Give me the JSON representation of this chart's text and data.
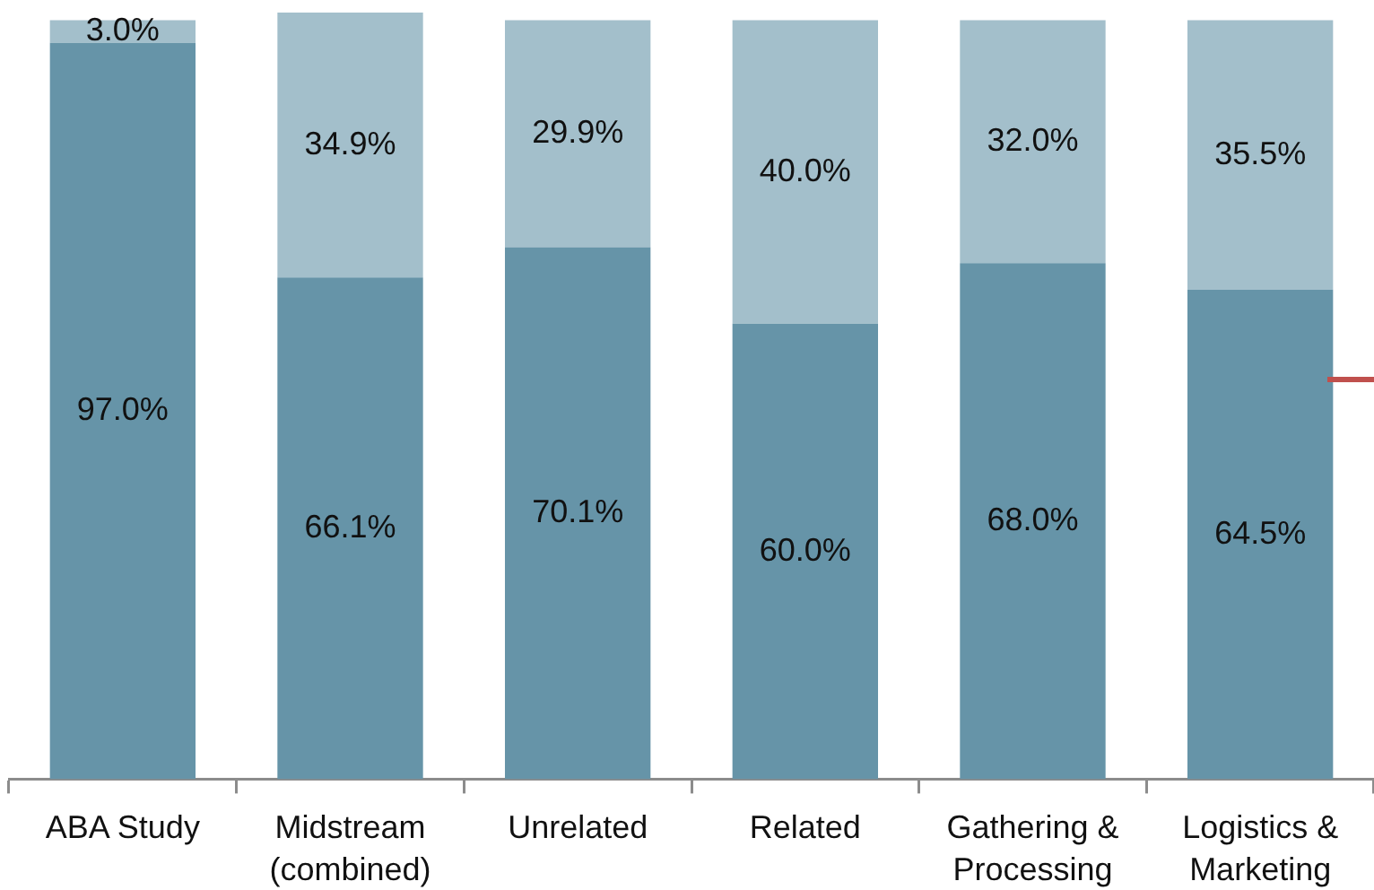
{
  "chart_data": {
    "type": "bar",
    "stacked": true,
    "tick_labels": "x",
    "categories": [
      "ABA Study",
      "Midstream\n(combined)",
      "Unrelated",
      "Related",
      "Gathering &\nProcessing",
      "Logistics &\nMarketing"
    ],
    "series": [
      {
        "color": "#6694a8",
        "values": [
          97.0,
          66.1,
          70.1,
          60.0,
          68.0,
          64.5
        ],
        "value_labels": [
          "97.0%",
          "66.1%",
          "70.1%",
          "60.0%",
          "68.0%",
          "64.5%"
        ]
      },
      {
        "color": "#a3bfcb",
        "values": [
          3.0,
          34.9,
          29.9,
          40.0,
          32.0,
          35.5
        ],
        "value_labels": [
          "3.0%",
          "34.9%",
          "29.9%",
          "40.0%",
          "32.0%",
          "35.5%"
        ]
      }
    ]
  }
}
